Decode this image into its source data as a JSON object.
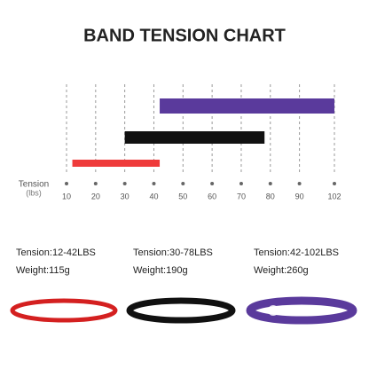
{
  "chart_data": {
    "type": "range_bar",
    "title": "BAND TENSION CHART",
    "axis_label": "Tension",
    "axis_unit": "(lbs)",
    "xlim": [
      10,
      102
    ],
    "xticks": [
      10,
      20,
      30,
      40,
      50,
      60,
      70,
      80,
      90,
      102
    ],
    "grid": true,
    "bars": [
      {
        "color": "#5a3a9c",
        "values": [
          42,
          102
        ]
      },
      {
        "color": "#111111",
        "values": [
          30,
          78
        ]
      },
      {
        "color": "#ef3b3b",
        "values": [
          12,
          42
        ]
      }
    ]
  },
  "products": [
    {
      "tension": "Tension:12-42LBS",
      "weight": "Weight:115g"
    },
    {
      "tension": "Tension:30-78LBS",
      "weight": "Weight:190g"
    },
    {
      "tension": "Tension:42-102LBS",
      "weight": "Weight:260g"
    }
  ]
}
